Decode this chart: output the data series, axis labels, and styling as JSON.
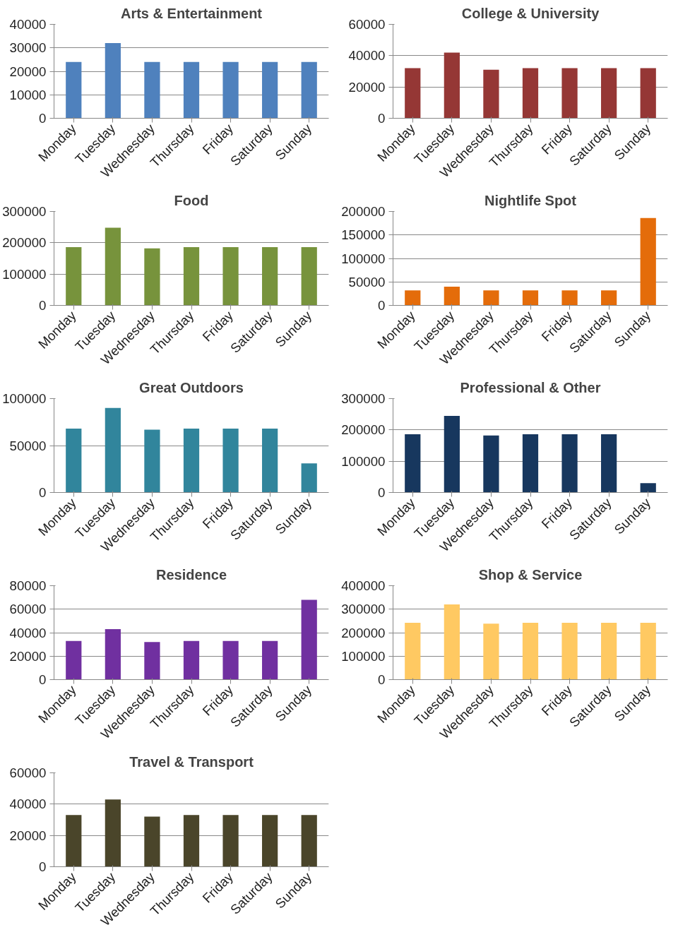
{
  "chart_data": [
    {
      "type": "bar",
      "title": "Arts & Entertainment",
      "categories": [
        "Monday",
        "Tuesday",
        "Wednesday",
        "Thursday",
        "Friday",
        "Saturday",
        "Sunday"
      ],
      "values": [
        24000,
        32000,
        24000,
        24000,
        24000,
        24000,
        24000
      ],
      "color": "#4f81bd",
      "ylim": [
        0,
        40000
      ],
      "yticks": [
        0,
        10000,
        20000,
        30000,
        40000
      ],
      "grid": "y"
    },
    {
      "type": "bar",
      "title": "College & University",
      "categories": [
        "Monday",
        "Tuesday",
        "Wednesday",
        "Thursday",
        "Friday",
        "Saturday",
        "Sunday"
      ],
      "values": [
        32000,
        42000,
        31000,
        32000,
        32000,
        32000,
        32000
      ],
      "color": "#953735",
      "ylim": [
        0,
        60000
      ],
      "yticks": [
        0,
        20000,
        40000,
        60000
      ],
      "grid": "y"
    },
    {
      "type": "bar",
      "title": "Food",
      "categories": [
        "Monday",
        "Tuesday",
        "Wednesday",
        "Thursday",
        "Friday",
        "Saturday",
        "Sunday"
      ],
      "values": [
        186000,
        248000,
        182000,
        186000,
        186000,
        186000,
        186000
      ],
      "color": "#77933c",
      "ylim": [
        0,
        300000
      ],
      "yticks": [
        0,
        100000,
        200000,
        300000
      ],
      "grid": "y"
    },
    {
      "type": "bar",
      "title": "Nightlife Spot",
      "categories": [
        "Monday",
        "Tuesday",
        "Wednesday",
        "Thursday",
        "Friday",
        "Saturday",
        "Sunday"
      ],
      "values": [
        32000,
        40000,
        32000,
        32000,
        32000,
        32000,
        186000
      ],
      "color": "#e46c0a",
      "ylim": [
        0,
        200000
      ],
      "yticks": [
        0,
        50000,
        100000,
        150000,
        200000
      ],
      "grid": "y"
    },
    {
      "type": "bar",
      "title": "Great Outdoors",
      "categories": [
        "Monday",
        "Tuesday",
        "Wednesday",
        "Thursday",
        "Friday",
        "Saturday",
        "Sunday"
      ],
      "values": [
        68000,
        90000,
        67000,
        68000,
        68000,
        68000,
        31000
      ],
      "color": "#31859c",
      "ylim": [
        0,
        100000
      ],
      "yticks": [
        0,
        50000,
        100000
      ],
      "grid": "y"
    },
    {
      "type": "bar",
      "title": "Professional & Other",
      "categories": [
        "Monday",
        "Tuesday",
        "Wednesday",
        "Thursday",
        "Friday",
        "Saturday",
        "Sunday"
      ],
      "values": [
        186000,
        245000,
        182000,
        186000,
        186000,
        186000,
        30000
      ],
      "color": "#17375e",
      "ylim": [
        0,
        300000
      ],
      "yticks": [
        0,
        100000,
        200000,
        300000
      ],
      "grid": "y"
    },
    {
      "type": "bar",
      "title": "Residence",
      "categories": [
        "Monday",
        "Tuesday",
        "Wednesday",
        "Thursday",
        "Friday",
        "Saturday",
        "Sunday"
      ],
      "values": [
        33000,
        43000,
        32000,
        33000,
        33000,
        33000,
        68000
      ],
      "color": "#7030a0",
      "ylim": [
        0,
        80000
      ],
      "yticks": [
        0,
        20000,
        40000,
        60000,
        80000
      ],
      "grid": "y"
    },
    {
      "type": "bar",
      "title": "Shop & Service",
      "categories": [
        "Monday",
        "Tuesday",
        "Wednesday",
        "Thursday",
        "Friday",
        "Saturday",
        "Sunday"
      ],
      "values": [
        242000,
        320000,
        238000,
        242000,
        242000,
        242000,
        242000
      ],
      "color": "#ffc962",
      "ylim": [
        0,
        400000
      ],
      "yticks": [
        0,
        100000,
        200000,
        300000,
        400000
      ],
      "grid": "y"
    },
    {
      "type": "bar",
      "title": "Travel & Transport",
      "categories": [
        "Monday",
        "Tuesday",
        "Wednesday",
        "Thursday",
        "Friday",
        "Saturday",
        "Sunday"
      ],
      "values": [
        33000,
        43000,
        32000,
        33000,
        33000,
        33000,
        33000
      ],
      "color": "#4a452a",
      "ylim": [
        0,
        60000
      ],
      "yticks": [
        0,
        20000,
        40000,
        60000
      ],
      "grid": "y"
    }
  ]
}
